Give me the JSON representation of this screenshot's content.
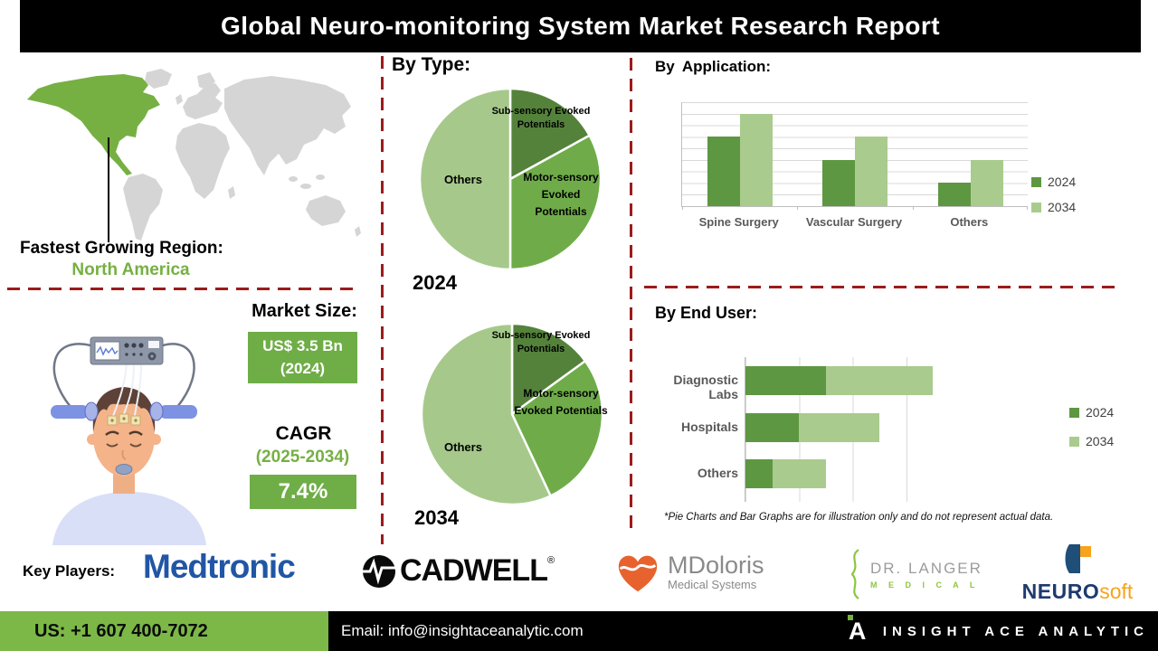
{
  "title": "Global Neuro-monitoring System Market Research Report",
  "region": {
    "label": "Fastest Growing Region:",
    "value": "North America"
  },
  "market": {
    "size_label": "Market Size:",
    "size_value": "US$ 3.5 Bn",
    "size_year": "(2024)",
    "cagr_label": "CAGR",
    "cagr_years": "(2025-2034)",
    "cagr_value": "7.4%"
  },
  "sections": {
    "by_type": "By Type:",
    "by_application": "By Application:",
    "by_end_user": "By End User:"
  },
  "disclaimer": "*Pie Charts and Bar Graphs are for illustration only and do not represent actual data.",
  "key_players": {
    "label": "Key Players:",
    "medtronic": "Medtronic",
    "cadwell": "CADWELL",
    "cadwell_reg": "®",
    "mdoloris_line1": "MDoloris",
    "mdoloris_line2": "Medical Systems",
    "drlanger_line1": "DR. LANGER",
    "drlanger_line2": "M E D I C A L",
    "neurosoft_part1": "NEURO",
    "neurosoft_part2": "soft"
  },
  "footer": {
    "phone": "US: +1 607 400-7072",
    "email": "Email: info@insightaceanalytic.com",
    "brand": "INSIGHT ACE ANALYTIC"
  },
  "colors": {
    "accent_green": "#76B043",
    "box_green": "#6FAD47",
    "footer_green": "#7CB847",
    "dashed_line_red": "#9B1C1C",
    "series_2024_green": "#5E9741",
    "series_2034_green": "#A9CB8D",
    "pie_dark_green": "#54823B",
    "pie_mid_green": "#6FAC49",
    "pie_light_green": "#A6C98B",
    "map_gray": "#D5D5D5"
  },
  "chart_data": [
    {
      "type": "pie",
      "title": "By Type: 2024",
      "year": "2024",
      "start_angle_deg": 0,
      "direction": "clockwise",
      "slices": [
        {
          "label": "Sub-sensory Evoked Potentials",
          "value_pct": 17,
          "color": "#54823B"
        },
        {
          "label": "Motor-sensory Evoked Potentials",
          "value_pct": 33,
          "color": "#6FAC49"
        },
        {
          "label": "Others",
          "value_pct": 50,
          "color": "#A6C98B"
        }
      ]
    },
    {
      "type": "pie",
      "title": "By Type: 2034",
      "year": "2034",
      "start_angle_deg": 0,
      "direction": "clockwise",
      "slices": [
        {
          "label": "Sub-sensory Evoked Potentials",
          "value_pct": 15,
          "color": "#54823B"
        },
        {
          "label": "Motor-sensory Evoked Potentials",
          "value_pct": 28,
          "color": "#6FAC49"
        },
        {
          "label": "Others",
          "value_pct": 57,
          "color": "#A6C98B"
        }
      ]
    },
    {
      "type": "bar",
      "title": "By Application:",
      "categories": [
        "Spine Surgery",
        "Vascular Surgery",
        "Others"
      ],
      "series": [
        {
          "name": "2024",
          "color": "#5E9741",
          "values": [
            6,
            4,
            2
          ]
        },
        {
          "name": "2034",
          "color": "#A9CB8D",
          "values": [
            8,
            6,
            4
          ]
        }
      ],
      "ylim": [
        0,
        9
      ],
      "grid": true,
      "legend_position": "right"
    },
    {
      "type": "stacked-bar-horizontal",
      "title": "By End User:",
      "categories": [
        "Diagnostic Labs",
        "Hospitals",
        "Others"
      ],
      "series": [
        {
          "name": "2024",
          "color": "#5E9741",
          "values": [
            1.5,
            1.0,
            0.5
          ]
        },
        {
          "name": "2034",
          "color": "#A9CB8D",
          "values": [
            2.0,
            1.5,
            1.0
          ]
        }
      ],
      "xlim": [
        0,
        4
      ],
      "grid": true,
      "legend_position": "right"
    }
  ]
}
